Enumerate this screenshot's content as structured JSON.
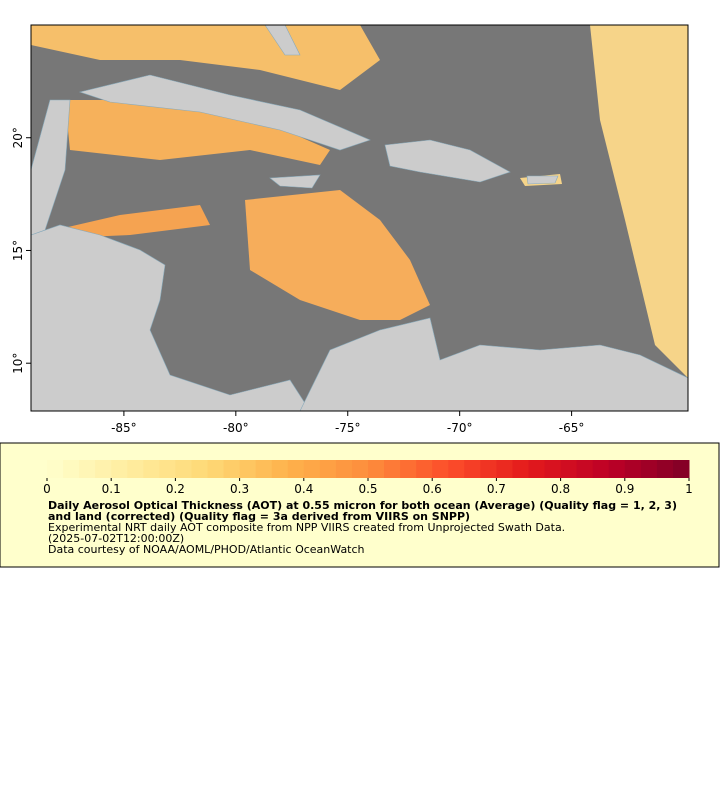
{
  "map": {
    "xlim": [
      -89.15,
      -59.8
    ],
    "ylim": [
      7.88,
      25
    ],
    "xticks": [
      {
        "value": -85,
        "label": "-85°"
      },
      {
        "value": -80,
        "label": "-80°"
      },
      {
        "value": -75,
        "label": "-75°"
      },
      {
        "value": -70,
        "label": "-70°"
      },
      {
        "value": -65,
        "label": "-65°"
      }
    ],
    "yticks": [
      {
        "value": 10,
        "label": "10°"
      },
      {
        "value": 15,
        "label": "15°"
      },
      {
        "value": 20,
        "label": "20°"
      }
    ]
  },
  "legend": {
    "colorbar": {
      "range": [
        0,
        1
      ],
      "ticks": [
        0,
        0.1,
        0.2,
        0.3,
        0.4,
        0.5,
        0.6,
        0.7,
        0.8,
        0.9,
        1
      ],
      "palette": [
        "#ffffcc",
        "#ffeda0",
        "#fed976",
        "#feb24c",
        "#fd8d3c",
        "#fc4e2a",
        "#e31a1c",
        "#bd0026",
        "#800026"
      ]
    },
    "title": "Daily Aerosol Optical Thickness (AOT) at 0.55 micron for both ocean (Average) (Quality flag = 1, 2, 3) and land (corrected) (Quality flag = 3a derived from VIIRS on SNPP)",
    "lines": [
      "Experimental NRT daily AOT composite from NPP VIIRS created from Unprojected Swath Data.",
      "(2025-07-02T12:00:00Z)",
      "Data courtesy of NOAA/AOML/PHOD/Atlantic OceanWatch"
    ]
  }
}
